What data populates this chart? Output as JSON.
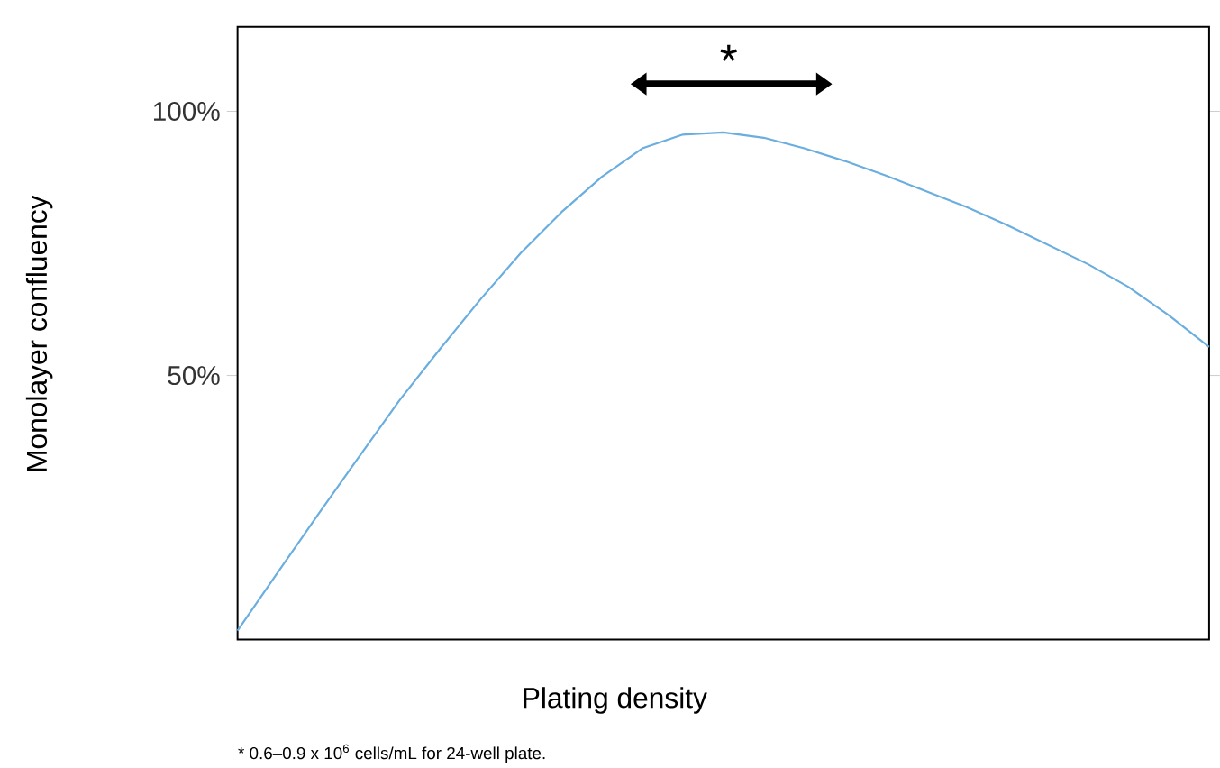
{
  "chart_data": {
    "type": "line",
    "xlabel": "Plating density",
    "ylabel": "Monolayer confluency",
    "categories": [
      null,
      null,
      null,
      null,
      null,
      null,
      null,
      null,
      null,
      null,
      null,
      null,
      null,
      null,
      null,
      null,
      null,
      null,
      null,
      null,
      null,
      null,
      null,
      null,
      null
    ],
    "series": [
      {
        "color": "#6aaee0",
        "values": [
          1.7,
          12.8,
          23.8,
          34.6,
          45.3,
          55,
          64.4,
          73.2,
          80.9,
          87.6,
          93,
          95.6,
          96,
          95,
          93,
          90.6,
          87.9,
          84.9,
          81.9,
          78.5,
          74.8,
          71.1,
          66.8,
          61.4,
          55.4
        ]
      }
    ],
    "ylim": [
      0,
      116
    ],
    "yticks": [
      {
        "value": 50,
        "label": "50%"
      },
      {
        "value": 100,
        "label": "100%"
      }
    ],
    "tick_labels": "y",
    "grid": false,
    "marker": "none",
    "line_style": "solid",
    "annotations": [
      "*",
      "* 0.6–0.9 x 10$^{6}$ cells/mL for 24-well plate."
    ]
  }
}
